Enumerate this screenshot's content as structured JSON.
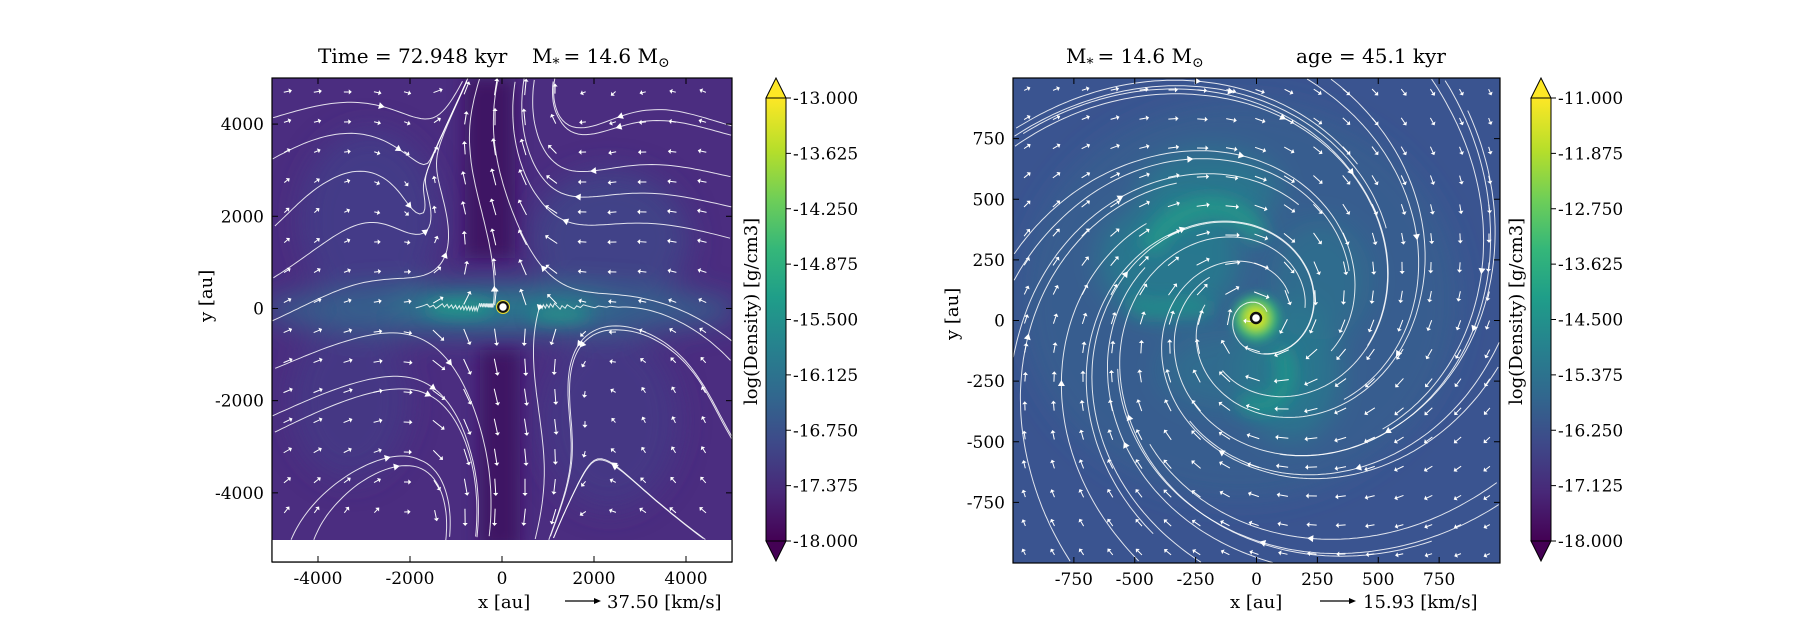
{
  "chart_data": [
    {
      "type": "heatmap",
      "title": "Time = 72.948 kyr",
      "title_mass_label": "M",
      "title_mass_sub": "*",
      "title_mass_value": "= 14.6 M",
      "title_mass_sun": "⊙",
      "xlabel": "x [au]",
      "ylabel": "y [au]",
      "xlim": [
        -5000,
        5000
      ],
      "ylim": [
        -5500,
        5000
      ],
      "xticks": [
        -4000,
        -2000,
        0,
        2000,
        4000
      ],
      "xtick_labels": [
        "-4000",
        "-2000",
        "0",
        "2000",
        "4000"
      ],
      "yticks": [
        4000,
        2000,
        0,
        -2000,
        -4000
      ],
      "ytick_labels": [
        "4000",
        "2000",
        "0",
        "-2000",
        "-4000"
      ],
      "colorbar_label": "log(Density) [g/cm3]",
      "colorbar_range": [
        -18.0,
        -13.0
      ],
      "colorbar_ticks": [
        "-13.000",
        "-13.625",
        "-14.250",
        "-14.875",
        "-15.500",
        "-16.125",
        "-16.750",
        "-17.375",
        "-18.000"
      ],
      "quiver_key": "37.50 [km/s]",
      "flow_pattern": "outflow"
    },
    {
      "type": "heatmap",
      "title_mass_label": "M",
      "title_mass_sub": "*",
      "title_mass_value": "= 14.6 M",
      "title_mass_sun": "⊙",
      "title_age": "age = 45.1 kyr",
      "xlabel": "x [au]",
      "ylabel": "y [au]",
      "xlim": [
        -1000,
        1000
      ],
      "ylim": [
        -1000,
        1000
      ],
      "xticks": [
        -750,
        -500,
        -250,
        0,
        250,
        500,
        750
      ],
      "xtick_labels": [
        "-750",
        "-500",
        "-250",
        "0",
        "250",
        "500",
        "750"
      ],
      "yticks": [
        750,
        500,
        250,
        0,
        -250,
        -500,
        -750
      ],
      "ytick_labels": [
        "750",
        "500",
        "250",
        "0",
        "-250",
        "-500",
        "-750"
      ],
      "colorbar_label": "log(Density) [g/cm3]",
      "colorbar_range": [
        -18.0,
        -11.0
      ],
      "colorbar_ticks": [
        "-11.000",
        "-11.875",
        "-12.750",
        "-13.625",
        "-14.500",
        "-15.375",
        "-16.250",
        "-17.125",
        "-18.000"
      ],
      "quiver_key": "15.93 [km/s]",
      "flow_pattern": "spiral"
    }
  ],
  "colors": {
    "cmap": [
      "#440154",
      "#482878",
      "#3e4989",
      "#31688e",
      "#26828e",
      "#1f9e89",
      "#35b779",
      "#6ece58",
      "#b5de2b",
      "#fde725"
    ],
    "vector": "#ffffff",
    "star_ring": "#111111",
    "background_left": "#4b2d80",
    "background_right": "#3a5490"
  }
}
